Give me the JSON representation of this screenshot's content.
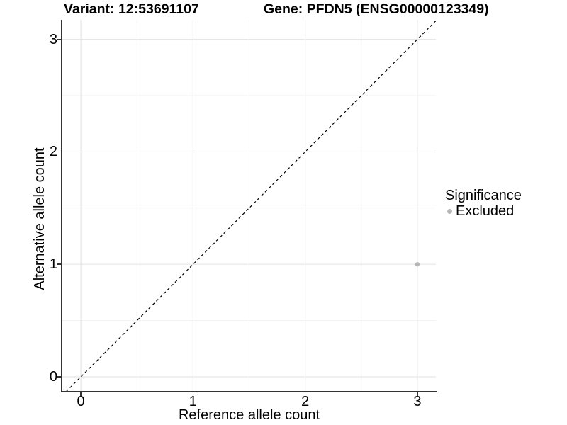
{
  "chart_data": {
    "type": "scatter",
    "title_left": "Variant: 12:53691107",
    "title_right": "Gene: PFDN5 (ENSG00000123349)",
    "xlabel": "Reference allele count",
    "ylabel": "Alternative allele count",
    "x_ticks": [
      0,
      1,
      2,
      3
    ],
    "y_ticks": [
      0,
      1,
      2,
      3
    ],
    "x_minor_ticks": [
      0.5,
      1.5,
      2.5
    ],
    "y_minor_ticks": [
      0.5,
      1.5,
      2.5
    ],
    "xlim": [
      -0.165,
      3.165
    ],
    "ylim": [
      -0.126,
      3.174
    ],
    "grid": true,
    "points": [
      {
        "x": 3,
        "y": 1,
        "series": "Excluded"
      }
    ],
    "reference_line": {
      "slope": 1,
      "intercept": 0,
      "style": "dashed"
    },
    "legend": {
      "title": "Significance",
      "position": "right",
      "items": [
        {
          "label": "Excluded",
          "color": "#b8b8b8"
        }
      ]
    },
    "colors": {
      "point": "#b8b8b8",
      "grid_major": "#e6e6e6",
      "grid_minor": "#f2f2f2",
      "axis_line": "#333333",
      "reference_line": "#000000",
      "text": "#000000",
      "background": "#ffffff"
    }
  }
}
